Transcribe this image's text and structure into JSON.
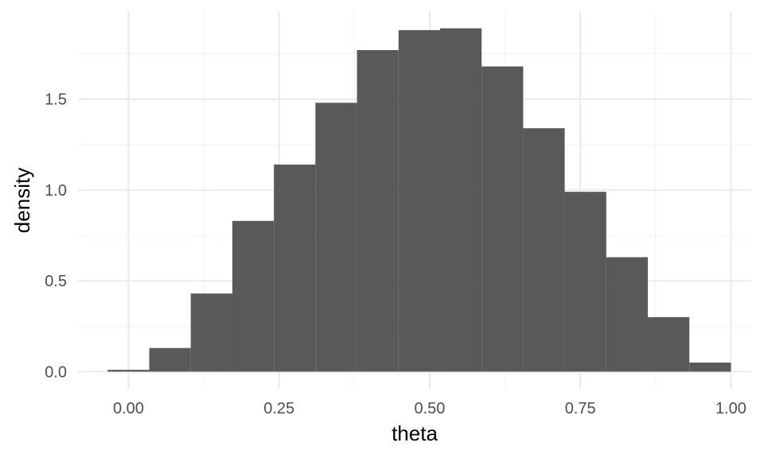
{
  "chart_data": {
    "type": "bar",
    "title": "",
    "xlabel": "theta",
    "ylabel": "density",
    "xlim": [
      -0.0838,
      1.0338
    ],
    "ylim": [
      -0.0945,
      1.9845
    ],
    "x_ticks": [
      0.0,
      0.25,
      0.5,
      0.75,
      1.0
    ],
    "x_tick_labels": [
      "0.00",
      "0.25",
      "0.50",
      "0.75",
      "1.00"
    ],
    "y_ticks": [
      0.0,
      0.5,
      1.0,
      1.5
    ],
    "y_tick_labels": [
      "0.0",
      "0.5",
      "1.0",
      "1.5"
    ],
    "x_minor_ticks": [
      0.125,
      0.375,
      0.625,
      0.875
    ],
    "y_minor_ticks": [
      0.25,
      0.75,
      1.25,
      1.75
    ],
    "grid": true,
    "bar_color": "#595959",
    "bins": [
      {
        "x0": -0.0345,
        "x1": 0.0345,
        "value": 0.01
      },
      {
        "x0": 0.0345,
        "x1": 0.1034,
        "value": 0.13
      },
      {
        "x0": 0.1034,
        "x1": 0.1724,
        "value": 0.43
      },
      {
        "x0": 0.1724,
        "x1": 0.2414,
        "value": 0.83
      },
      {
        "x0": 0.2414,
        "x1": 0.3103,
        "value": 1.14
      },
      {
        "x0": 0.3103,
        "x1": 0.3793,
        "value": 1.48
      },
      {
        "x0": 0.3793,
        "x1": 0.4483,
        "value": 1.77
      },
      {
        "x0": 0.4483,
        "x1": 0.5172,
        "value": 1.88
      },
      {
        "x0": 0.5172,
        "x1": 0.5862,
        "value": 1.89
      },
      {
        "x0": 0.5862,
        "x1": 0.6552,
        "value": 1.68
      },
      {
        "x0": 0.6552,
        "x1": 0.7241,
        "value": 1.34
      },
      {
        "x0": 0.7241,
        "x1": 0.7931,
        "value": 0.99
      },
      {
        "x0": 0.7931,
        "x1": 0.8621,
        "value": 0.63
      },
      {
        "x0": 0.8621,
        "x1": 0.931,
        "value": 0.3
      },
      {
        "x0": 0.931,
        "x1": 1.0,
        "value": 0.05
      }
    ]
  }
}
